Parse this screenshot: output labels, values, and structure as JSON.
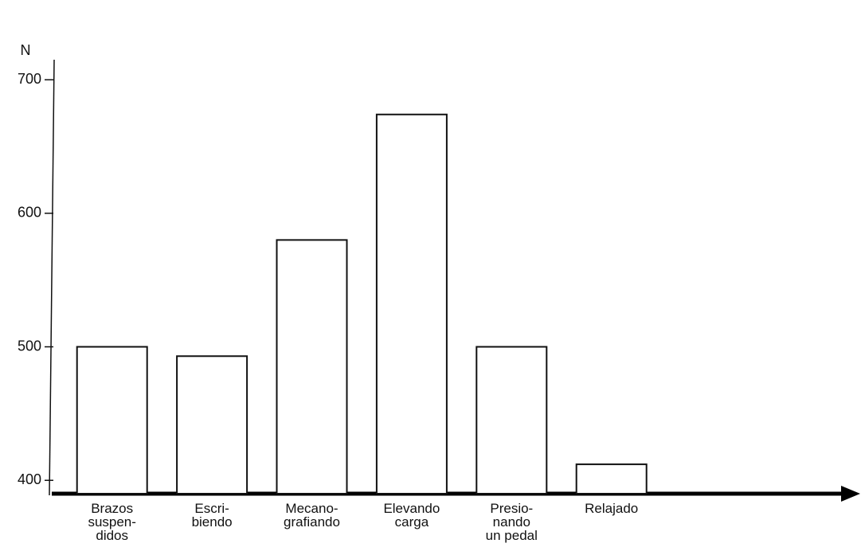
{
  "chart_data": {
    "type": "bar",
    "y_label": "N",
    "categories": [
      "Brazos\nsuspen-\ndidos",
      "Escri-\nbiendo",
      "Mecano-\ngrafiando",
      "Elevando\ncarga",
      "Presio-\nnando\nun pedal",
      "Relajado"
    ],
    "values": [
      500,
      493,
      580,
      674,
      500,
      412
    ],
    "color": "#ffffff",
    "ylim": [
      390,
      715
    ],
    "yticks": [
      400,
      500,
      600,
      700
    ],
    "grid": false
  }
}
